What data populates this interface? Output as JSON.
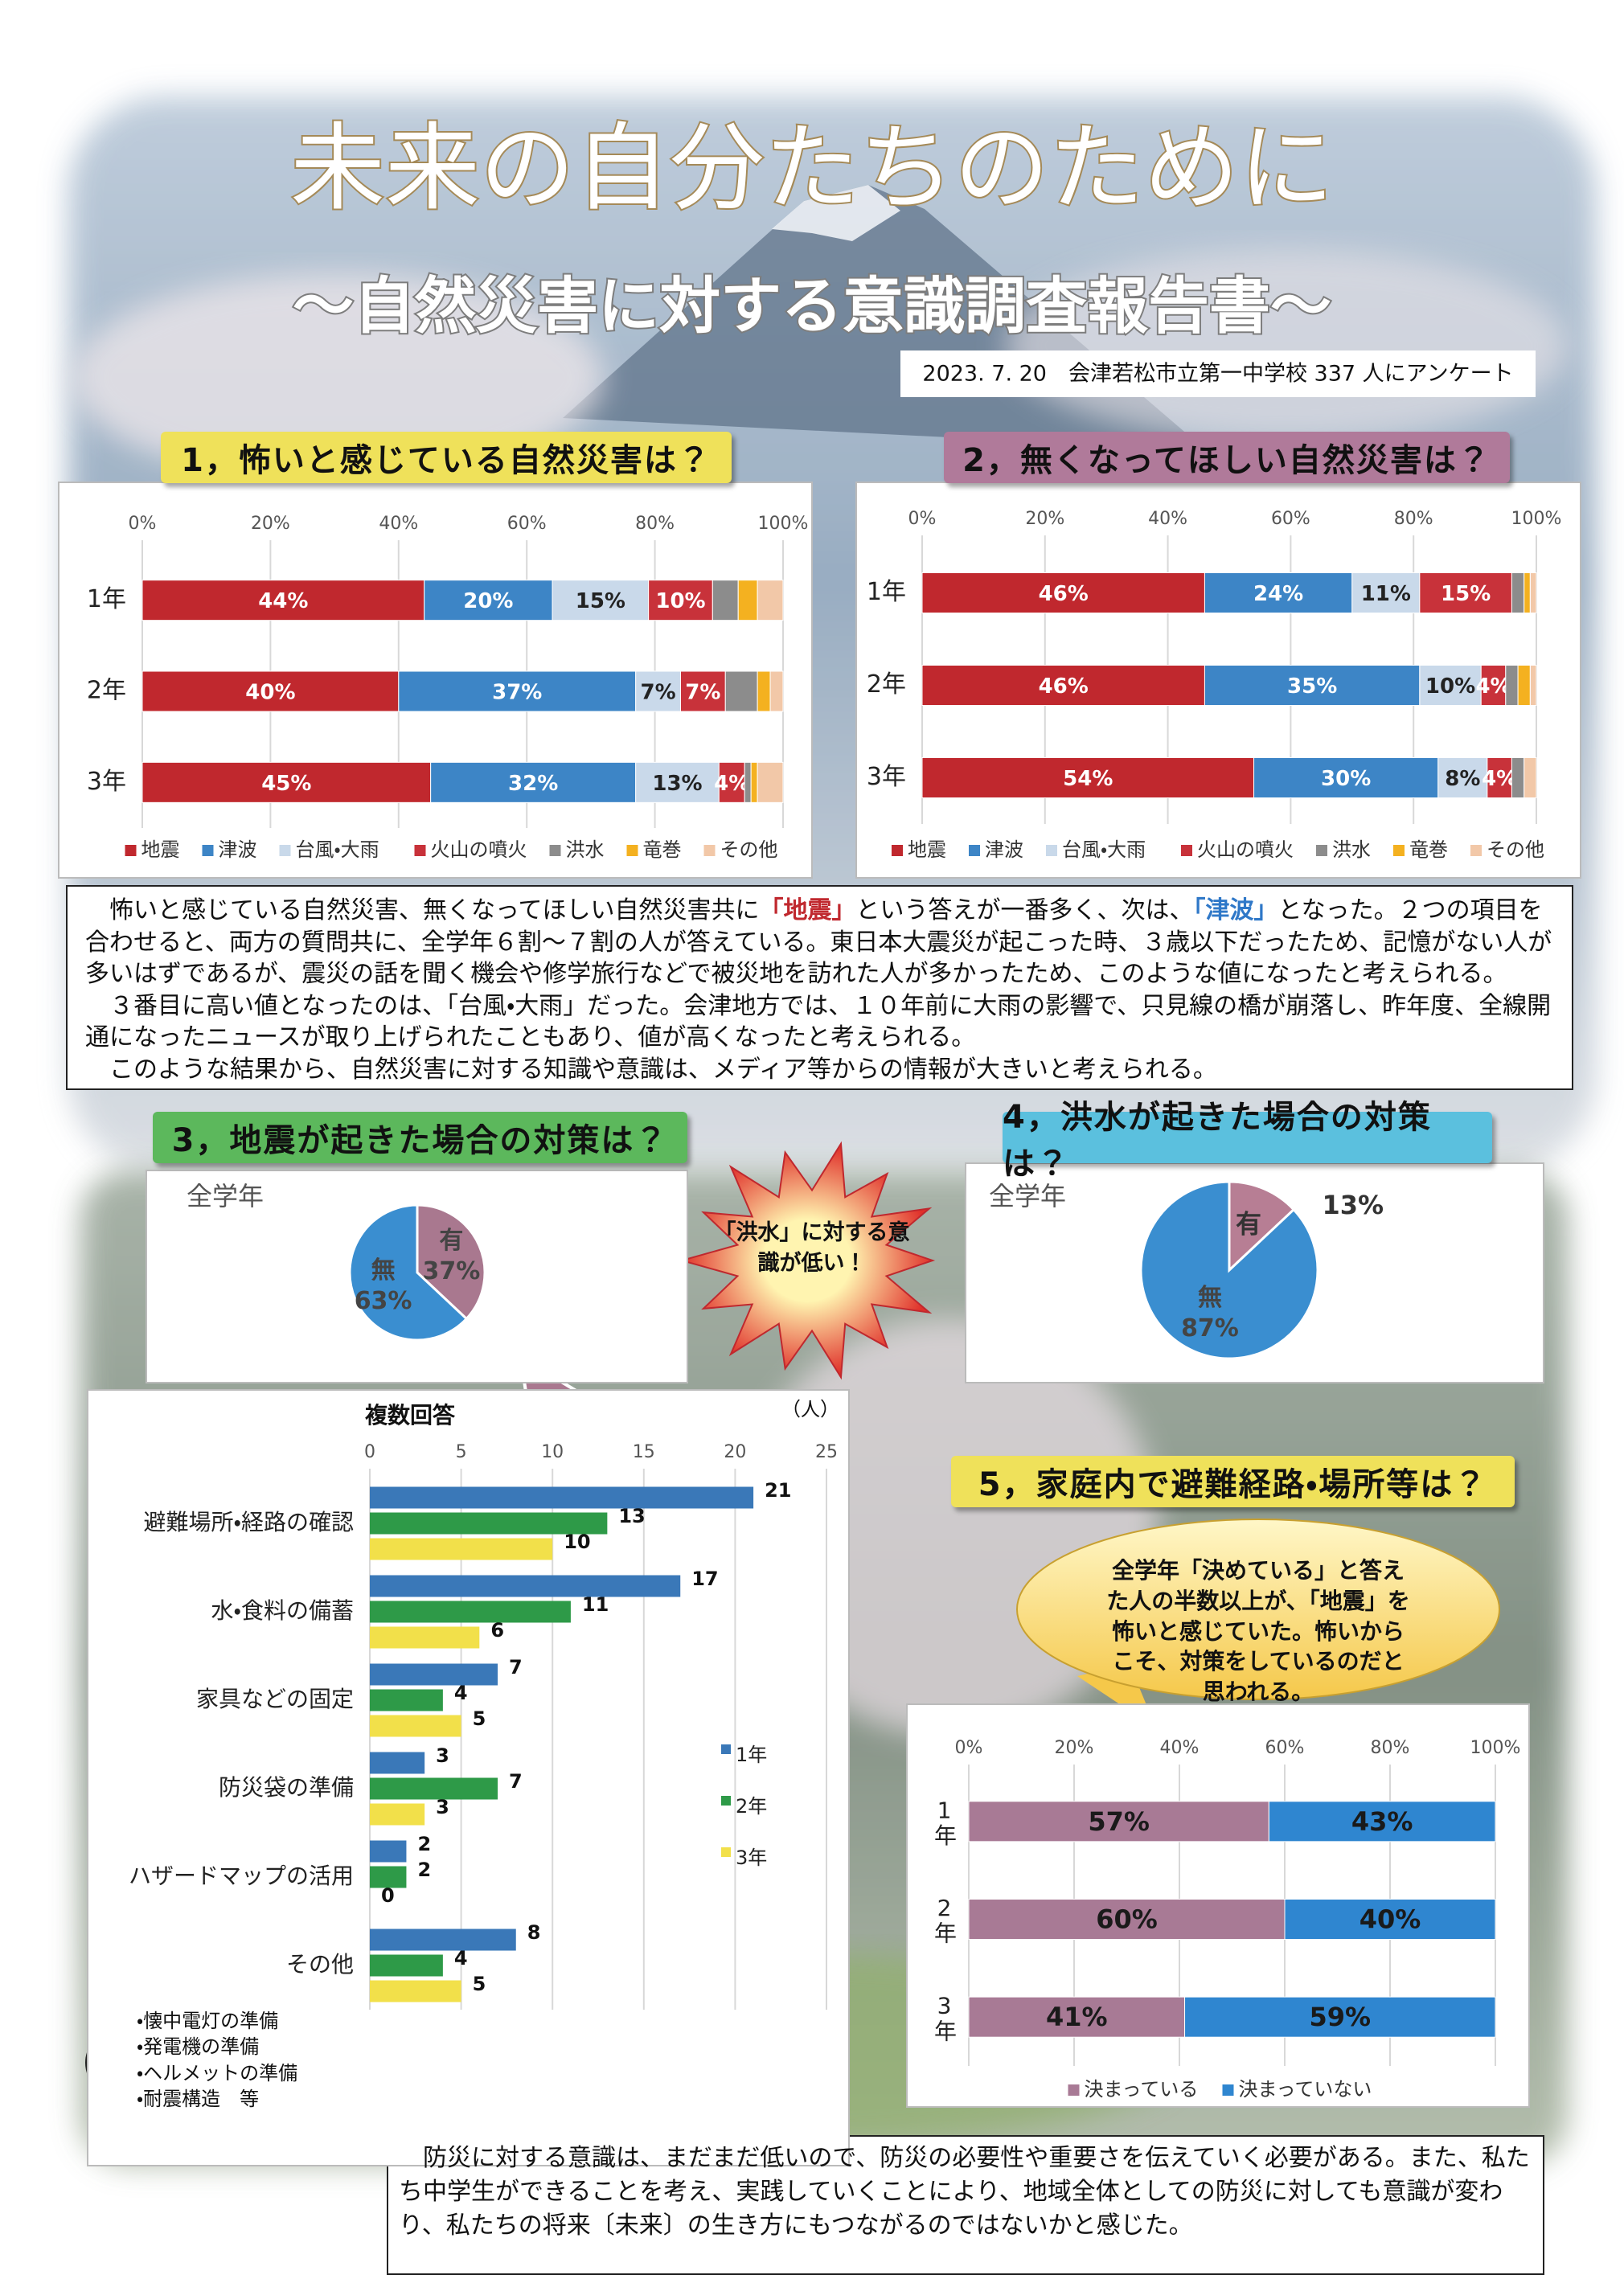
{
  "header": {
    "title": "未来の自分たちのために",
    "subtitle": "～自然災害に対する意識調査報告書～",
    "survey": "2023. 7. 20　会津若松市立第一中学校 337 人にアンケート"
  },
  "sections": [
    "1，怖いと感じている自然災害は？",
    "2，無くなってほしい自然災害は？",
    "3，地震が起きた場合の対策は？",
    "4，洪水が起きた場合の対策は？",
    "5，家庭内で避難経路・場所等は？"
  ],
  "summary": {
    "paragraphs": [
      [
        "　怖いと感じている自然災害、無くなってほしい自然災害共に",
        "「地震」",
        "という答えが一番多く、次は、",
        "「津波」",
        "となった。２つの項目を合わせると、両方の質問共に、全学年６割～７割の人が答えている。東日本大震災が起こった時、３歳以下だったため、記憶がない人が多いはずであるが、震災の話を聞く機会や修学旅行などで被災地を訪れた人が多かったため、このような値になったと考えられる。"
      ],
      [
        "　３番目に高い値となったのは、「台風・大雨」だった。会津地方では、１０年前に大雨の影響で、只見線の橋が崩落し、昨年度、全線開通になったニュースが取り上げられたこともあり、値が高くなったと考えられる。"
      ],
      [
        "　このような結果から、自然災害に対する知識や意識は、メディア等からの情報が大きいと考えられる。"
      ]
    ]
  },
  "callout": "「洪水」に対する意識が低い！",
  "bubble": "全学年「決めている」と答えた人の半数以上が、「地震」を怖いと感じていた。怖いからこそ、対策をしているのだと思われる。",
  "note": [
    "・懐中電灯の準備",
    "・発電機の準備",
    "・ヘルメットの準備",
    "・耐震構造　等"
  ],
  "conclusion": "　防災に対する意識は、まだまだ低いので、防災の必要性や重要さを伝えていく必要がある。また、私たち中学生ができることを考え、実践していくことにより、地域全体としての防災に対しても意識が変わり、私たちの将来〔未来〕の生き方にもつながるのではないかと感じた。",
  "chart_data": [
    {
      "type": "bar",
      "orientation": "horizontal",
      "stacked": true,
      "grid": true,
      "legend": "bottom",
      "categories": [
        "1年",
        "2年",
        "3年"
      ],
      "xlim": [
        0,
        100
      ],
      "xticks": [
        {
          "value": 0,
          "label": "0%"
        },
        {
          "value": 20,
          "label": "20%"
        },
        {
          "value": 40,
          "label": "40%"
        },
        {
          "value": 60,
          "label": "60%"
        },
        {
          "value": 80,
          "label": "80%"
        },
        {
          "value": 100,
          "label": "100%"
        }
      ],
      "series": [
        {
          "name": "地震",
          "color": "#c0282e",
          "values": [
            44,
            40,
            45
          ],
          "value_labels": [
            "44%",
            "40%",
            "45%"
          ]
        },
        {
          "name": "津波",
          "color": "#3d85c6",
          "values": [
            20,
            37,
            32
          ],
          "value_labels": [
            "20%",
            "37%",
            "32%"
          ]
        },
        {
          "name": "台風・大雨",
          "color": "#c9d9ea",
          "values": [
            15,
            7,
            13
          ],
          "value_labels": [
            "15%",
            "7%",
            "13%"
          ]
        },
        {
          "name": "火山の噴火",
          "color": "#c8323a",
          "values": [
            10,
            7,
            4
          ],
          "value_labels": [
            "10%",
            "7%",
            "4%"
          ]
        },
        {
          "name": "洪水",
          "color": "#8c8c8c",
          "values": [
            4,
            5,
            1
          ]
        },
        {
          "name": "竜巻",
          "color": "#f4b120",
          "values": [
            3,
            2,
            1
          ]
        },
        {
          "name": "その他",
          "color": "#f2c8a8",
          "values": [
            4,
            2,
            4
          ]
        }
      ]
    },
    {
      "type": "bar",
      "orientation": "horizontal",
      "stacked": true,
      "grid": true,
      "legend": "bottom",
      "categories": [
        "1年",
        "2年",
        "3年"
      ],
      "xlim": [
        0,
        100
      ],
      "xticks": [
        {
          "value": 0,
          "label": "0%"
        },
        {
          "value": 20,
          "label": "20%"
        },
        {
          "value": 40,
          "label": "40%"
        },
        {
          "value": 60,
          "label": "60%"
        },
        {
          "value": 80,
          "label": "80%"
        },
        {
          "value": 100,
          "label": "100%"
        }
      ],
      "series": [
        {
          "name": "地震",
          "color": "#c0282e",
          "values": [
            46,
            46,
            54
          ],
          "value_labels": [
            "46%",
            "46%",
            "54%"
          ]
        },
        {
          "name": "津波",
          "color": "#3d85c6",
          "values": [
            24,
            35,
            30
          ],
          "value_labels": [
            "24%",
            "35%",
            "30%"
          ]
        },
        {
          "name": "台風・大雨",
          "color": "#c9d9ea",
          "values": [
            11,
            10,
            8
          ],
          "value_labels": [
            "11%",
            "10%",
            "8%"
          ]
        },
        {
          "name": "火山の噴火",
          "color": "#c8323a",
          "values": [
            15,
            4,
            4
          ],
          "value_labels": [
            "15%",
            "4%",
            "4%"
          ]
        },
        {
          "name": "洪水",
          "color": "#8c8c8c",
          "values": [
            2,
            2,
            2
          ]
        },
        {
          "name": "竜巻",
          "color": "#f4b120",
          "values": [
            1,
            2,
            0
          ]
        },
        {
          "name": "その他",
          "color": "#f2c8a8",
          "values": [
            1,
            1,
            2
          ]
        }
      ]
    },
    {
      "type": "pie",
      "subtitle": "全学年",
      "categories": [
        "有",
        "無"
      ],
      "values": [
        37,
        63
      ],
      "value_labels": [
        "37%",
        "63%"
      ],
      "colors": [
        "#a9788f",
        "#3a8ed0"
      ]
    },
    {
      "type": "pie",
      "subtitle": "全学年",
      "categories": [
        "有",
        "無"
      ],
      "values": [
        13,
        87
      ],
      "value_labels": [
        "13%",
        "87%"
      ],
      "colors": [
        "#b77e94",
        "#3a8ed0"
      ]
    },
    {
      "type": "bar",
      "orientation": "horizontal",
      "stacked": false,
      "grid": true,
      "legend": "right",
      "title": "複数回答",
      "unit": "（人）",
      "categories": [
        "避難場所・経路の確認",
        "水・食料の備蓄",
        "家具などの固定",
        "防災袋の準備",
        "ハザードマップの活用",
        "その他"
      ],
      "xlim": [
        0,
        25
      ],
      "xticks": [
        0,
        5,
        10,
        15,
        20,
        25
      ],
      "series": [
        {
          "name": "1年",
          "color": "#3a78b8",
          "values": [
            21,
            17,
            7,
            3,
            2,
            8
          ]
        },
        {
          "name": "2年",
          "color": "#2e9a48",
          "values": [
            13,
            11,
            4,
            7,
            2,
            4
          ]
        },
        {
          "name": "3年",
          "color": "#f2e04a",
          "values": [
            10,
            6,
            5,
            3,
            0,
            5
          ]
        }
      ]
    },
    {
      "type": "bar",
      "orientation": "horizontal",
      "stacked": true,
      "grid": true,
      "legend": "bottom",
      "categories": [
        "1年",
        "2年",
        "3年"
      ],
      "xlim": [
        0,
        100
      ],
      "xticks": [
        {
          "value": 0,
          "label": "0%"
        },
        {
          "value": 20,
          "label": "20%"
        },
        {
          "value": 40,
          "label": "40%"
        },
        {
          "value": 60,
          "label": "60%"
        },
        {
          "value": 80,
          "label": "80%"
        },
        {
          "value": 100,
          "label": "100%"
        }
      ],
      "series": [
        {
          "name": "決まっている",
          "color": "#a87a95",
          "values": [
            57,
            60,
            41
          ],
          "value_labels": [
            "57%",
            "60%",
            "41%"
          ]
        },
        {
          "name": "決まっていない",
          "color": "#2f86d0",
          "values": [
            43,
            40,
            59
          ],
          "value_labels": [
            "43%",
            "40%",
            "59%"
          ]
        }
      ]
    }
  ]
}
